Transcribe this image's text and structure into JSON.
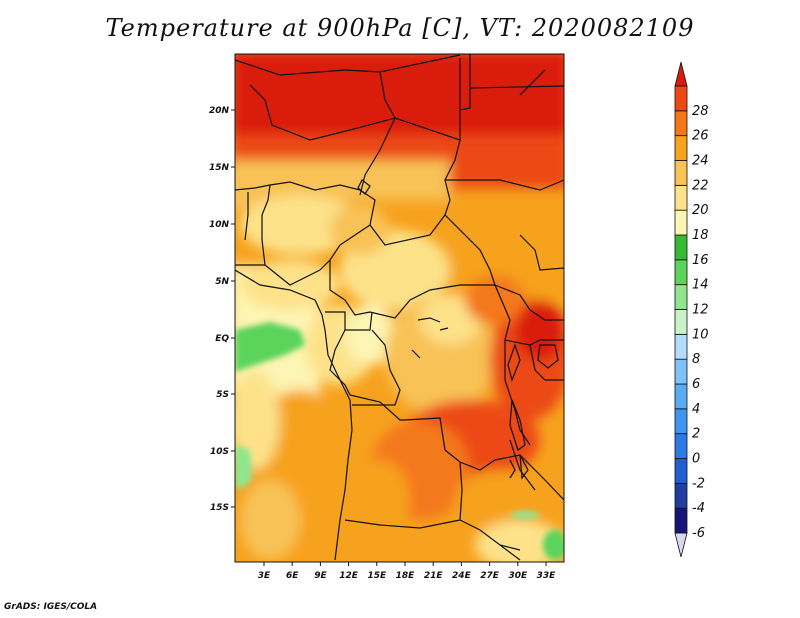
{
  "title": "Temperature at 900hPa [C], VT: 2020082109",
  "footer": "GrADS: IGES/COLA",
  "lat_labels": [
    "20N",
    "15N",
    "10N",
    "5N",
    "EQ",
    "5S",
    "10S",
    "15S"
  ],
  "lon_labels": [
    "3E",
    "6E",
    "9E",
    "12E",
    "15E",
    "18E",
    "21E",
    "24E",
    "27E",
    "30E",
    "33E"
  ],
  "colorbar": {
    "levels": [
      -6,
      -4,
      -2,
      0,
      2,
      4,
      6,
      8,
      10,
      12,
      14,
      16,
      18,
      20,
      22,
      24,
      26,
      28
    ],
    "labels": [
      "-6",
      "-4",
      "-2",
      "0",
      "2",
      "4",
      "6",
      "8",
      "10",
      "12",
      "14",
      "16",
      "18",
      "20",
      "22",
      "24",
      "26",
      "28"
    ],
    "colors": [
      "#d9d9f5",
      "#16167a",
      "#1e3fa0",
      "#1f5fd0",
      "#2a7be6",
      "#3d95f0",
      "#5aaaf4",
      "#7ec2f8",
      "#b4dcfb",
      "#c9f2c9",
      "#8fe68f",
      "#5bd45b",
      "#33bb33",
      "#fdf5b4",
      "#fde28a",
      "#f8c256",
      "#f7a21e",
      "#f4781a",
      "#ec4a12",
      "#da1c0e"
    ]
  },
  "map": {
    "lon_range": [
      0,
      35
    ],
    "lat_range": [
      -19,
      25
    ],
    "region": "Central Africa"
  }
}
